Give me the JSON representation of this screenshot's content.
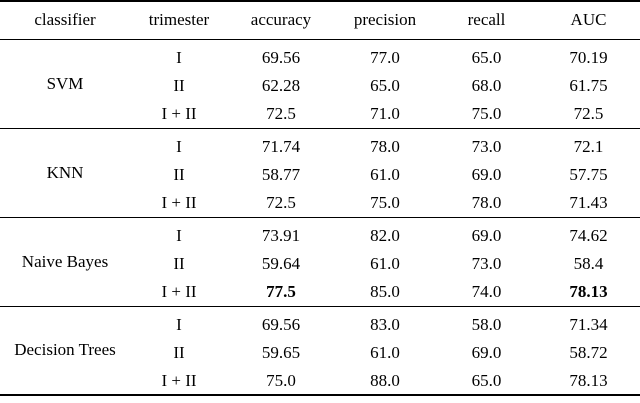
{
  "table": {
    "header": [
      "classifier",
      "trimester",
      "accuracy",
      "precision",
      "recall",
      "AUC"
    ],
    "groups": [
      {
        "classifier": "SVM",
        "rows": [
          [
            "I",
            "69.56",
            "77.0",
            "65.0",
            "70.19"
          ],
          [
            "II",
            "62.28",
            "65.0",
            "68.0",
            "61.75"
          ],
          [
            "I + II",
            "72.5",
            "71.0",
            "75.0",
            "72.5"
          ]
        ]
      },
      {
        "classifier": "KNN",
        "rows": [
          [
            "I",
            "71.74",
            "78.0",
            "73.0",
            "72.1"
          ],
          [
            "II",
            "58.77",
            "61.0",
            "69.0",
            "57.75"
          ],
          [
            "I + II",
            "72.5",
            "75.0",
            "78.0",
            "71.43"
          ]
        ]
      },
      {
        "classifier": "Naive Bayes",
        "rows": [
          [
            "I",
            "73.91",
            "82.0",
            "69.0",
            "74.62"
          ],
          [
            "II",
            "59.64",
            "61.0",
            "73.0",
            "58.4"
          ],
          [
            "I + II",
            "77.5",
            "85.0",
            "74.0",
            "78.13"
          ]
        ]
      },
      {
        "classifier": "Decision Trees",
        "rows": [
          [
            "I",
            "69.56",
            "83.0",
            "58.0",
            "71.34"
          ],
          [
            "II",
            "59.65",
            "61.0",
            "69.0",
            "58.72"
          ],
          [
            "I + II",
            "75.0",
            "88.0",
            "65.0",
            "78.13"
          ]
        ]
      }
    ]
  }
}
